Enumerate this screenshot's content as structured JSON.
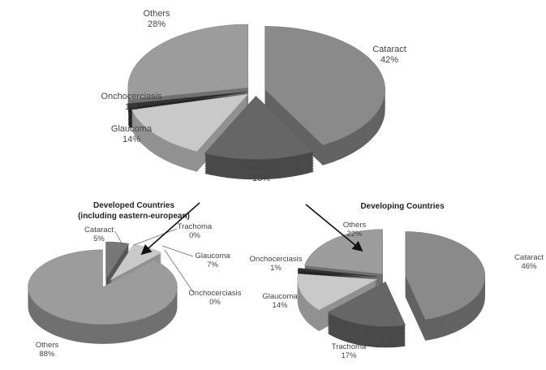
{
  "chart_data": [
    {
      "type": "pie",
      "title": "",
      "style": "3d-exploded",
      "categories": [
        "Cataract",
        "Trachoma",
        "Glaucoma",
        "Onchocerciasis",
        "Others"
      ],
      "values": [
        42,
        15,
        14,
        1,
        28
      ],
      "labels": [
        "42%",
        "15%",
        "14%",
        "1%",
        "28%"
      ],
      "colors": [
        "#8a8a8a",
        "#666666",
        "#c9c9c9",
        "#333333",
        "#9c9c9c"
      ]
    },
    {
      "type": "pie",
      "title": "Developed Countries",
      "subtitle": "(including eastern-european)",
      "style": "3d",
      "categories": [
        "Cataract",
        "Trachoma",
        "Glaucoma",
        "Onchocerciasis",
        "Others"
      ],
      "values": [
        5,
        0,
        7,
        0,
        88
      ],
      "labels": [
        "5%",
        "0%",
        "7%",
        "0%",
        "88%"
      ],
      "colors": [
        "#777777",
        "#666666",
        "#c9c9c9",
        "#333333",
        "#9c9c9c"
      ],
      "annotation": "arrow pointing to Glaucoma slice"
    },
    {
      "type": "pie",
      "title": "Developing Countries",
      "style": "3d-exploded",
      "categories": [
        "Cataract",
        "Trachoma",
        "Glaucoma",
        "Onchocerciasis",
        "Others"
      ],
      "values": [
        46,
        17,
        14,
        1,
        22
      ],
      "labels": [
        "46%",
        "17%",
        "14%",
        "1%",
        "22%"
      ],
      "colors": [
        "#8a8a8a",
        "#666666",
        "#c9c9c9",
        "#333333",
        "#9c9c9c"
      ],
      "annotation": "arrow pointing to Others slice"
    }
  ]
}
